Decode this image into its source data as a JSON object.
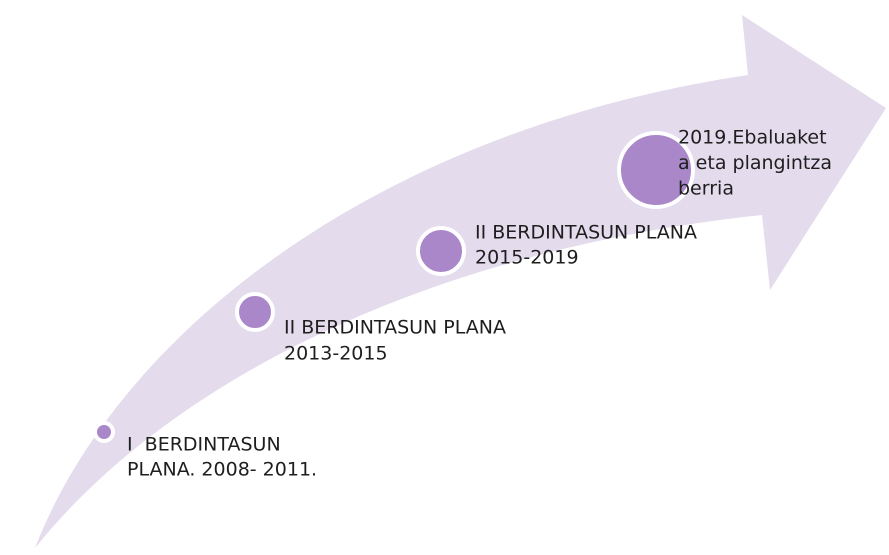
{
  "nodes": [
    {
      "lines": [
        "I  BERDINTASUN",
        "PLANA. 2008- 2011."
      ]
    },
    {
      "lines": [
        "II BERDINTASUN PLANA",
        "2013-2015"
      ]
    },
    {
      "lines": [
        "II BERDINTASUN PLANA",
        "2015-2019"
      ]
    },
    {
      "lines": [
        "2019.Ebaluaket",
        "a eta plangintza",
        "berria"
      ]
    }
  ]
}
